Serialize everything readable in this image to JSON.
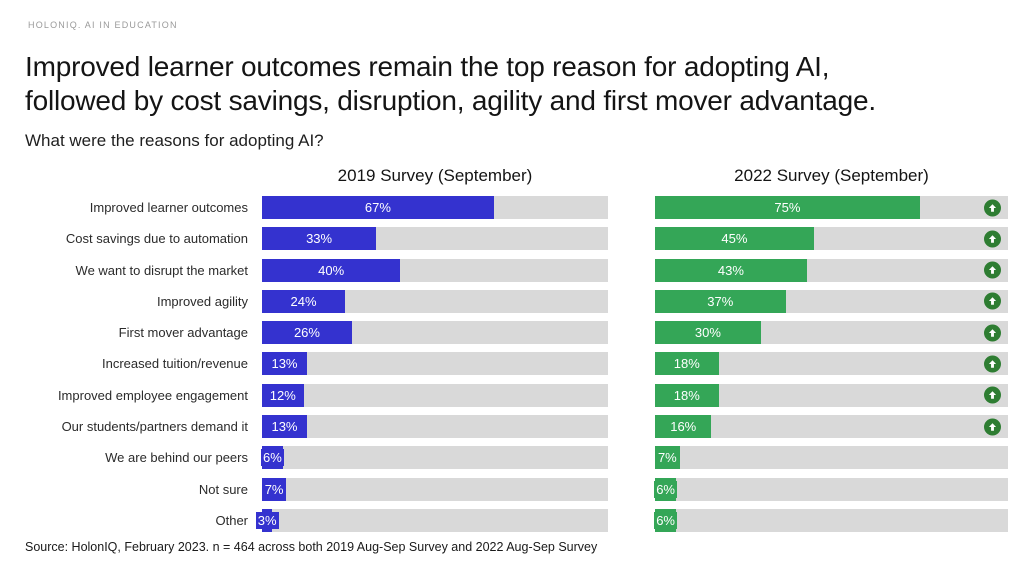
{
  "header": {
    "brand": "HOLONIQ. AI IN EDUCATION",
    "title_line1": "Improved learner outcomes remain the top reason for adopting AI,",
    "title_line2": "followed by cost savings, disruption, agility and first mover advantage.",
    "subtitle": "What were the reasons for adopting AI?"
  },
  "chart_data": {
    "type": "bar",
    "orientation": "horizontal",
    "unit": "%",
    "xlim": [
      0,
      100
    ],
    "grid": false,
    "legend_position": "column-headers",
    "categories": [
      "Improved learner outcomes",
      "Cost savings due to automation",
      "We want to disrupt the market",
      "Improved agility",
      "First mover advantage",
      "Increased tuition/revenue",
      "Improved employee engagement",
      "Our students/partners demand it",
      "We are behind our peers",
      "Not sure",
      "Other"
    ],
    "series": [
      {
        "name": "2019 Survey (September)",
        "color": "#3432cf",
        "values": [
          67,
          33,
          40,
          24,
          26,
          13,
          12,
          13,
          6,
          7,
          3
        ]
      },
      {
        "name": "2022 Survey (September)",
        "color": "#34a657",
        "values": [
          75,
          45,
          43,
          37,
          30,
          18,
          18,
          16,
          7,
          6,
          6
        ]
      }
    ],
    "increase_arrows": [
      true,
      true,
      true,
      true,
      true,
      true,
      true,
      true,
      false,
      false,
      false
    ],
    "track_color": "#d9d9d9",
    "increase_arrow_color": "#2e7d32",
    "value_label_color": "#ffffff"
  },
  "footer": {
    "source": "Source: HolonIQ, February 2023. n = 464 across both 2019 Aug-Sep Survey and 2022 Aug-Sep Survey"
  }
}
